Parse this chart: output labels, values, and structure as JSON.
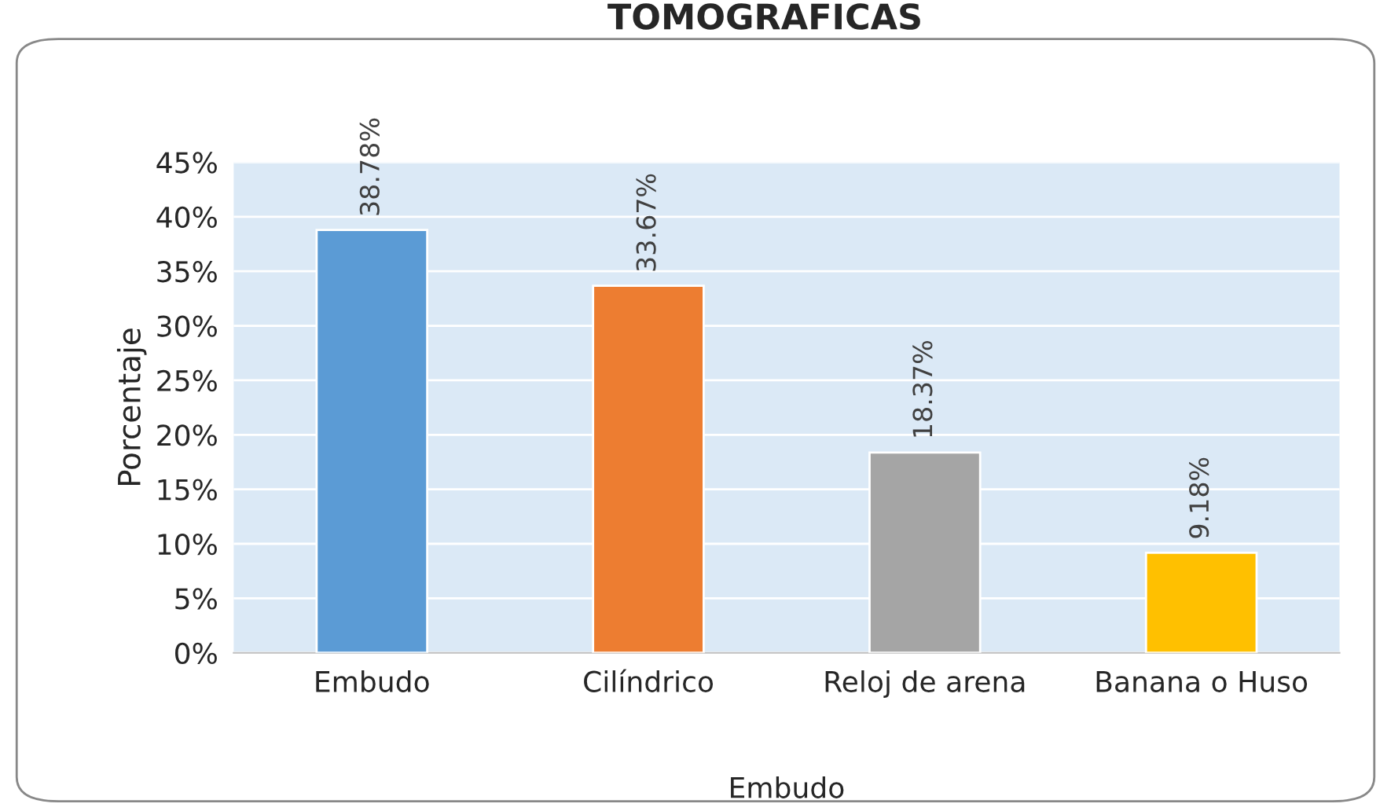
{
  "chart_data": {
    "type": "bar",
    "title": "TOMOGRAFICAS",
    "ylabel": "Porcentaje",
    "xlabel": "Embudo",
    "categories": [
      "Embudo",
      "Cilíndrico",
      "Reloj de arena",
      "Banana o Huso"
    ],
    "values": [
      38.78,
      33.67,
      18.37,
      9.18
    ],
    "colors": [
      "#5b9bd5",
      "#ed7d31",
      "#a5a5a5",
      "#ffc000"
    ],
    "ylim": [
      0,
      45
    ],
    "yticks": [
      {
        "value": 0,
        "label": "0%"
      },
      {
        "value": 5,
        "label": "5%"
      },
      {
        "value": 10,
        "label": "10%"
      },
      {
        "value": 15,
        "label": "15%"
      },
      {
        "value": 20,
        "label": "20%"
      },
      {
        "value": 25,
        "label": "25%"
      },
      {
        "value": 30,
        "label": "30%"
      },
      {
        "value": 35,
        "label": "35%"
      },
      {
        "value": 40,
        "label": "40%"
      },
      {
        "value": 45,
        "label": "45%"
      }
    ],
    "value_labels": [
      "38.78%",
      "33.67%",
      "18.37%",
      "9.18%"
    ],
    "grid": "y"
  }
}
